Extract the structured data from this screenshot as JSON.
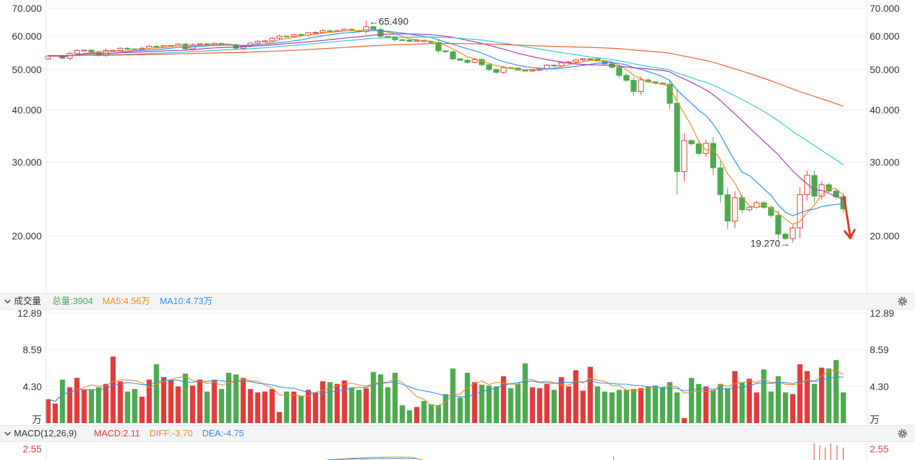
{
  "colors": {
    "up": "#e23b3b",
    "down": "#4caa4f",
    "ma5": "#f08a24",
    "ma10": "#2f8fe8",
    "ma20": "#a83ab8",
    "ma30": "#31c8d0",
    "ma60": "#f05a28",
    "annotation": "#e5322b",
    "macd_label": "#e23b3b",
    "diff_label": "#f08a24",
    "dea_label": "#2f8fe8",
    "total_label": "#4caa4f"
  },
  "main": {
    "y_ticks": [
      "70.000",
      "60.000",
      "50.000",
      "40.000",
      "30.000",
      "20.000"
    ],
    "high_label": "←65.490",
    "low_label": "19.270→"
  },
  "volume": {
    "title": "成交量",
    "total": "总量:3904",
    "ma5": "MA5:4.56万",
    "ma10": "MA10:4.73万",
    "y_ticks": [
      "12.89",
      "8.59",
      "4.30",
      "万"
    ]
  },
  "macd": {
    "title": "MACD(12,26,9)",
    "macd": "MACD:2.11",
    "diff": "DIFF:-3.70",
    "dea": "DEA:-4.75",
    "y_ticks": [
      "2.55"
    ]
  },
  "chart_data": {
    "type": "candlestick",
    "y_scale": "log",
    "ylim": [
      15.5,
      71
    ],
    "high": 65.49,
    "low": 19.27,
    "close": [
      53.8,
      54.0,
      53.2,
      54.6,
      55.5,
      55.6,
      55.1,
      54.0,
      55.5,
      55.5,
      56.2,
      56.0,
      55.7,
      56.2,
      56.8,
      56.6,
      57.0,
      57.0,
      57.5,
      56.0,
      57.3,
      57.6,
      57.3,
      57.7,
      57.4,
      57.3,
      56.2,
      56.9,
      57.8,
      58.4,
      58.5,
      59.4,
      60.1,
      60.0,
      60.6,
      60.4,
      61.2,
      61.3,
      61.9,
      61.6,
      61.9,
      62.4,
      61.9,
      61.7,
      63.3,
      62.3,
      60.0,
      59.8,
      58.9,
      58.8,
      58.4,
      58.7,
      58.3,
      58.0,
      55.4,
      55.1,
      53.0,
      52.6,
      52.0,
      52.8,
      51.3,
      50.0,
      49.2,
      50.5,
      50.4,
      49.8,
      49.6,
      49.8,
      50.2,
      51.2,
      51.0,
      51.9,
      52.1,
      52.7,
      53.0,
      53.0,
      52.4,
      51.6,
      50.6,
      48.4,
      47.1,
      44.3,
      47.2,
      46.7,
      46.4,
      46.1,
      41.5,
      28.5,
      33.8,
      33.2,
      31.5,
      33.3,
      29.1,
      25.1,
      21.7,
      24.7,
      23.1,
      23.4,
      24.0,
      23.4,
      22.4,
      20.2,
      19.7,
      20.9,
      25.1,
      27.9,
      24.9,
      26.5,
      25.6,
      24.8,
      23.2
    ],
    "volume_unit": "万",
    "volume": [
      2.8,
      2.3,
      5.1,
      4.2,
      5.3,
      3.9,
      3.9,
      4.2,
      4.6,
      7.8,
      4.9,
      3.7,
      4.0,
      3.1,
      5.1,
      6.9,
      5.4,
      5.0,
      4.3,
      5.8,
      4.4,
      5.1,
      3.7,
      5.0,
      4.0,
      5.9,
      5.7,
      5.3,
      4.0,
      3.6,
      3.7,
      4.0,
      1.3,
      3.7,
      3.7,
      3.2,
      3.9,
      3.6,
      4.9,
      4.8,
      4.6,
      5.0,
      4.1,
      3.9,
      4.1,
      6.0,
      5.7,
      4.2,
      5.9,
      2.1,
      1.5,
      1.9,
      2.6,
      2.2,
      2.1,
      3.4,
      6.4,
      3.0,
      5.9,
      4.8,
      4.5,
      4.4,
      4.3,
      5.5,
      4.1,
      4.6,
      7.0,
      4.2,
      4.1,
      4.6,
      3.9,
      5.4,
      4.3,
      6.2,
      3.8,
      6.6,
      4.3,
      3.7,
      3.6,
      3.9,
      3.9,
      4.0,
      4.1,
      4.3,
      4.4,
      4.2,
      4.8,
      3.6,
      0.6,
      5.3,
      4.6,
      4.3,
      3.9,
      4.6,
      4.1,
      6.1,
      4.8,
      5.2,
      3.6,
      6.3,
      3.7,
      5.5,
      3.6,
      3.4,
      6.9,
      6.1,
      4.6,
      6.5,
      6.4,
      7.4,
      3.6
    ],
    "note": ""
  }
}
